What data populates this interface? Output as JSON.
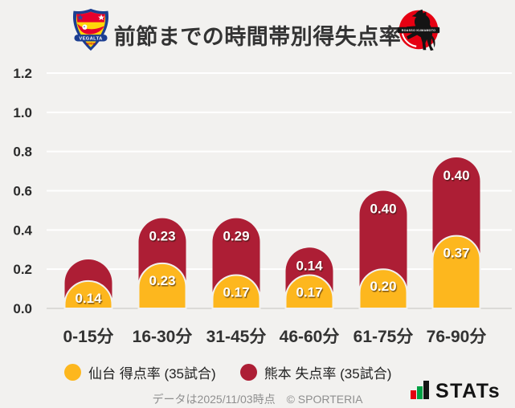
{
  "header": {
    "title": "前節までの時間帯別得失点率",
    "home_crest_text": "VEGALTA",
    "home_crest_subtext": "SENDAI",
    "away_crest_text": "ROASSO KUMAMOTO"
  },
  "chart_data": {
    "type": "bar",
    "stacked": true,
    "title": "前節までの時間帯別得失点率",
    "categories": [
      "0-15分",
      "16-30分",
      "31-45分",
      "46-60分",
      "61-75分",
      "76-90分"
    ],
    "series": [
      {
        "name": "仙台 得点率 (35試合)",
        "color": "#fdb71e",
        "values": [
          0.14,
          0.23,
          0.17,
          0.17,
          0.2,
          0.37
        ],
        "data_labels": [
          "0.14",
          "0.23",
          "0.17",
          "0.17",
          "0.20",
          "0.37"
        ]
      },
      {
        "name": "熊本 失点率 (35試合)",
        "color": "#ad1e35",
        "values": [
          0.11,
          0.23,
          0.29,
          0.14,
          0.4,
          0.4
        ],
        "data_labels": [
          "",
          "0.23",
          "0.29",
          "0.14",
          "0.40",
          "0.40"
        ]
      }
    ],
    "ylim": [
      0,
      1.2
    ],
    "ytick_labels": [
      "0.0",
      "0.2",
      "0.4",
      "0.6",
      "0.8",
      "1.0",
      "1.2"
    ],
    "grid": true,
    "legend_position": "bottom"
  },
  "footer": {
    "note": "データは2025/11/03時点",
    "copyright": "© SPORTERIA",
    "brand": "STATs"
  },
  "colors": {
    "background": "#f2f1ef",
    "sendai_yellow": "#fdb71e",
    "kumamoto_red": "#ad1e35",
    "gridline": "#ffffff",
    "baseline": "#dbdad7",
    "axis_text": "#2b2b2b",
    "bar_label_text": "#ffffff",
    "footer_gray": "#8f8f8f"
  }
}
